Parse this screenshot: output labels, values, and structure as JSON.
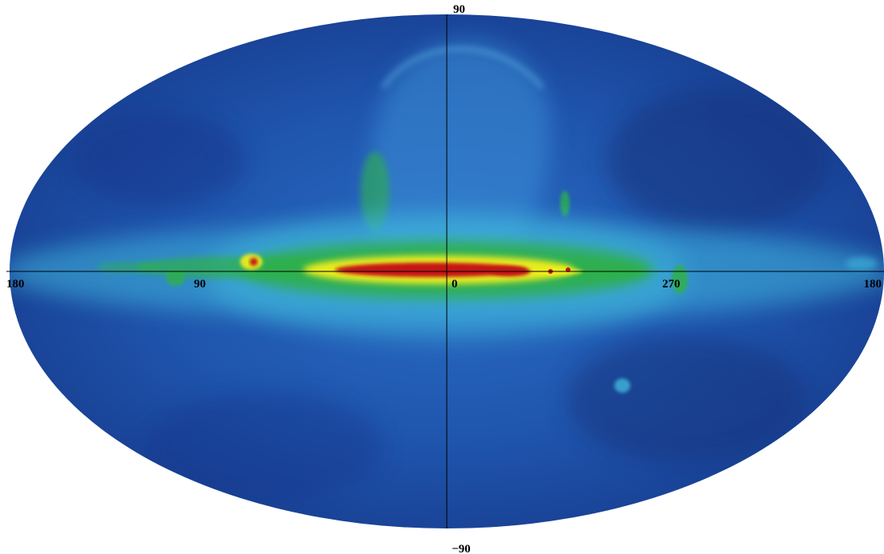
{
  "colors": {
    "background": "#ffffff",
    "sky_base": "#1f4fa8",
    "sky_dark": "#16307a",
    "emission_cyan": "#3fb7dc",
    "emission_green": "#2fb04a",
    "emission_yellow": "#f3ef1a",
    "emission_red": "#c51717",
    "axis": "#000000"
  },
  "axis_labels": {
    "north": "90",
    "south": "−90",
    "left": "180",
    "center": "0",
    "left_mid": "90",
    "right_mid": "270",
    "right": "180"
  }
}
